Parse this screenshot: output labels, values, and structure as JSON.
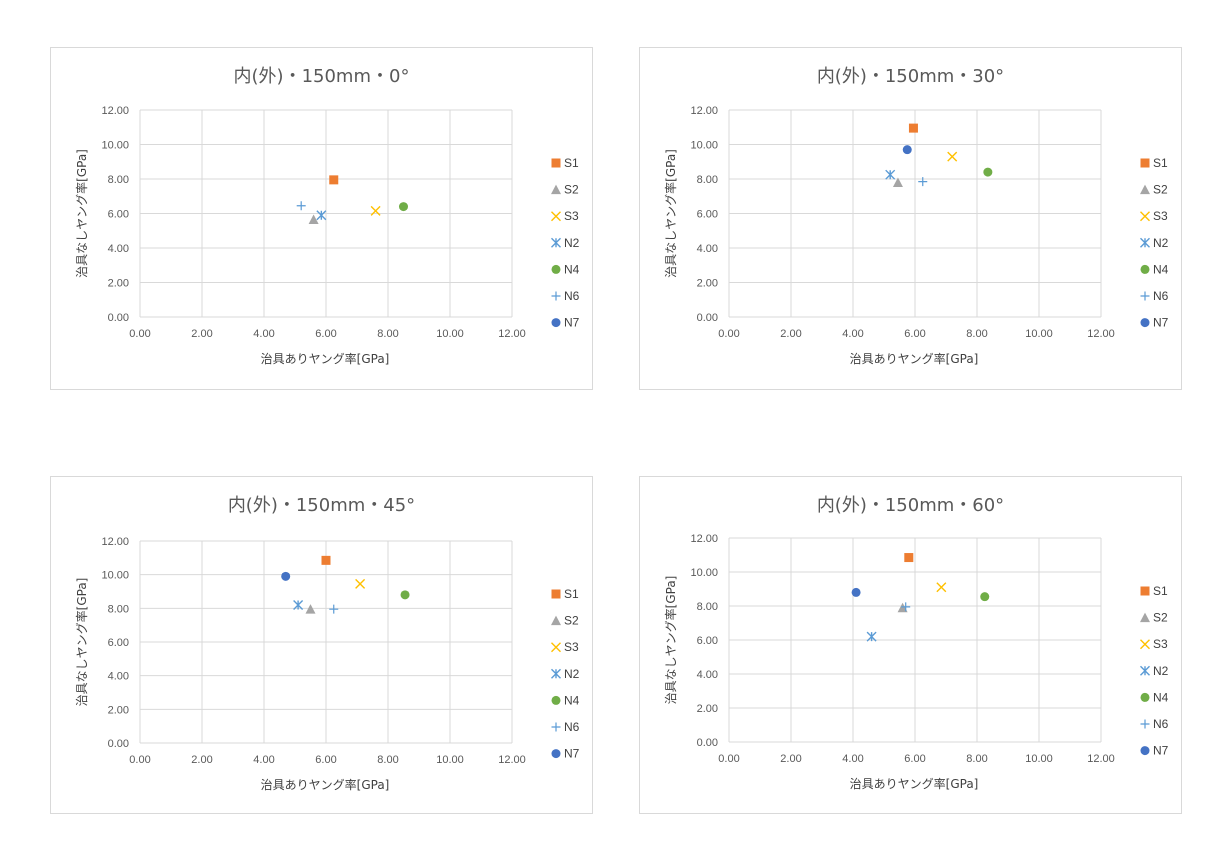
{
  "chart_data": [
    {
      "type": "scatter",
      "title": "内(外)・150mm・0°",
      "xlabel": "治具ありヤング率[GPa]",
      "ylabel": "治具なしヤング率[GPa]",
      "xlim": [
        0,
        12
      ],
      "ylim": [
        0,
        12
      ],
      "xticks": [
        "0.00",
        "2.00",
        "4.00",
        "6.00",
        "8.00",
        "10.00",
        "12.00"
      ],
      "yticks": [
        "0.00",
        "2.00",
        "4.00",
        "6.00",
        "8.00",
        "10.00",
        "12.00"
      ],
      "grid": true,
      "legend": "right",
      "series": [
        {
          "name": "S1",
          "x": 6.25,
          "y": 7.95,
          "marker": "square",
          "color": "#ED7D31"
        },
        {
          "name": "S2",
          "x": 5.6,
          "y": 5.65,
          "marker": "triangle",
          "color": "#A5A5A5"
        },
        {
          "name": "S3",
          "x": 7.6,
          "y": 6.15,
          "marker": "x",
          "color": "#FFC000"
        },
        {
          "name": "N2",
          "x": 5.85,
          "y": 5.9,
          "marker": "asterisk",
          "color": "#5B9BD5"
        },
        {
          "name": "N4",
          "x": 8.5,
          "y": 6.4,
          "marker": "circle",
          "color": "#70AD47"
        },
        {
          "name": "N6",
          "x": 5.2,
          "y": 6.45,
          "marker": "plus",
          "color": "#5B9BD5"
        },
        {
          "name": "N7",
          "x": null,
          "y": null,
          "marker": "circle",
          "color": "#4472C4"
        }
      ]
    },
    {
      "type": "scatter",
      "title": "内(外)・150mm・30°",
      "xlabel": "治具ありヤング率[GPa]",
      "ylabel": "治具なしヤング率[GPa]",
      "xlim": [
        0,
        12
      ],
      "ylim": [
        0,
        12
      ],
      "xticks": [
        "0.00",
        "2.00",
        "4.00",
        "6.00",
        "8.00",
        "10.00",
        "12.00"
      ],
      "yticks": [
        "0.00",
        "2.00",
        "4.00",
        "6.00",
        "8.00",
        "10.00",
        "12.00"
      ],
      "grid": true,
      "legend": "right",
      "series": [
        {
          "name": "S1",
          "x": 5.95,
          "y": 10.95,
          "marker": "square",
          "color": "#ED7D31"
        },
        {
          "name": "S2",
          "x": 5.45,
          "y": 7.8,
          "marker": "triangle",
          "color": "#A5A5A5"
        },
        {
          "name": "S3",
          "x": 7.2,
          "y": 9.3,
          "marker": "x",
          "color": "#FFC000"
        },
        {
          "name": "N2",
          "x": 5.2,
          "y": 8.25,
          "marker": "asterisk",
          "color": "#5B9BD5"
        },
        {
          "name": "N4",
          "x": 8.35,
          "y": 8.4,
          "marker": "circle",
          "color": "#70AD47"
        },
        {
          "name": "N6",
          "x": 6.25,
          "y": 7.85,
          "marker": "plus",
          "color": "#5B9BD5"
        },
        {
          "name": "N7",
          "x": 5.75,
          "y": 9.7,
          "marker": "circle",
          "color": "#4472C4"
        }
      ]
    },
    {
      "type": "scatter",
      "title": "内(外)・150mm・45°",
      "xlabel": "治具ありヤング率[GPa]",
      "ylabel": "治具なしヤング率[GPa]",
      "xlim": [
        0,
        12
      ],
      "ylim": [
        0,
        12
      ],
      "xticks": [
        "0.00",
        "2.00",
        "4.00",
        "6.00",
        "8.00",
        "10.00",
        "12.00"
      ],
      "yticks": [
        "0.00",
        "2.00",
        "4.00",
        "6.00",
        "8.00",
        "10.00",
        "12.00"
      ],
      "grid": true,
      "legend": "right",
      "series": [
        {
          "name": "S1",
          "x": 6.0,
          "y": 10.85,
          "marker": "square",
          "color": "#ED7D31"
        },
        {
          "name": "S2",
          "x": 5.5,
          "y": 7.95,
          "marker": "triangle",
          "color": "#A5A5A5"
        },
        {
          "name": "S3",
          "x": 7.1,
          "y": 9.45,
          "marker": "x",
          "color": "#FFC000"
        },
        {
          "name": "N2",
          "x": 5.1,
          "y": 8.2,
          "marker": "asterisk",
          "color": "#5B9BD5"
        },
        {
          "name": "N4",
          "x": 8.55,
          "y": 8.8,
          "marker": "circle",
          "color": "#70AD47"
        },
        {
          "name": "N6",
          "x": 6.25,
          "y": 7.95,
          "marker": "plus",
          "color": "#5B9BD5"
        },
        {
          "name": "N7",
          "x": 4.7,
          "y": 9.9,
          "marker": "circle",
          "color": "#4472C4"
        }
      ]
    },
    {
      "type": "scatter",
      "title": "内(外)・150mm・60°",
      "xlabel": "治具ありヤング率[GPa]",
      "ylabel": "治具なしヤング率[GPa]",
      "xlim": [
        0,
        12
      ],
      "ylim": [
        0,
        12
      ],
      "xticks": [
        "0.00",
        "2.00",
        "4.00",
        "6.00",
        "8.00",
        "10.00",
        "12.00"
      ],
      "yticks": [
        "0.00",
        "2.00",
        "4.00",
        "6.00",
        "8.00",
        "10.00",
        "12.00"
      ],
      "grid": true,
      "legend": "right",
      "series": [
        {
          "name": "S1",
          "x": 5.8,
          "y": 10.85,
          "marker": "square",
          "color": "#ED7D31"
        },
        {
          "name": "S2",
          "x": 5.6,
          "y": 7.9,
          "marker": "triangle",
          "color": "#A5A5A5"
        },
        {
          "name": "S3",
          "x": 6.85,
          "y": 9.1,
          "marker": "x",
          "color": "#FFC000"
        },
        {
          "name": "N2",
          "x": 4.6,
          "y": 6.2,
          "marker": "asterisk",
          "color": "#5B9BD5"
        },
        {
          "name": "N4",
          "x": 8.25,
          "y": 8.55,
          "marker": "circle",
          "color": "#70AD47"
        },
        {
          "name": "N6",
          "x": 5.7,
          "y": 7.95,
          "marker": "plus",
          "color": "#5B9BD5"
        },
        {
          "name": "N7",
          "x": 4.1,
          "y": 8.8,
          "marker": "circle",
          "color": "#4472C4"
        }
      ]
    }
  ]
}
